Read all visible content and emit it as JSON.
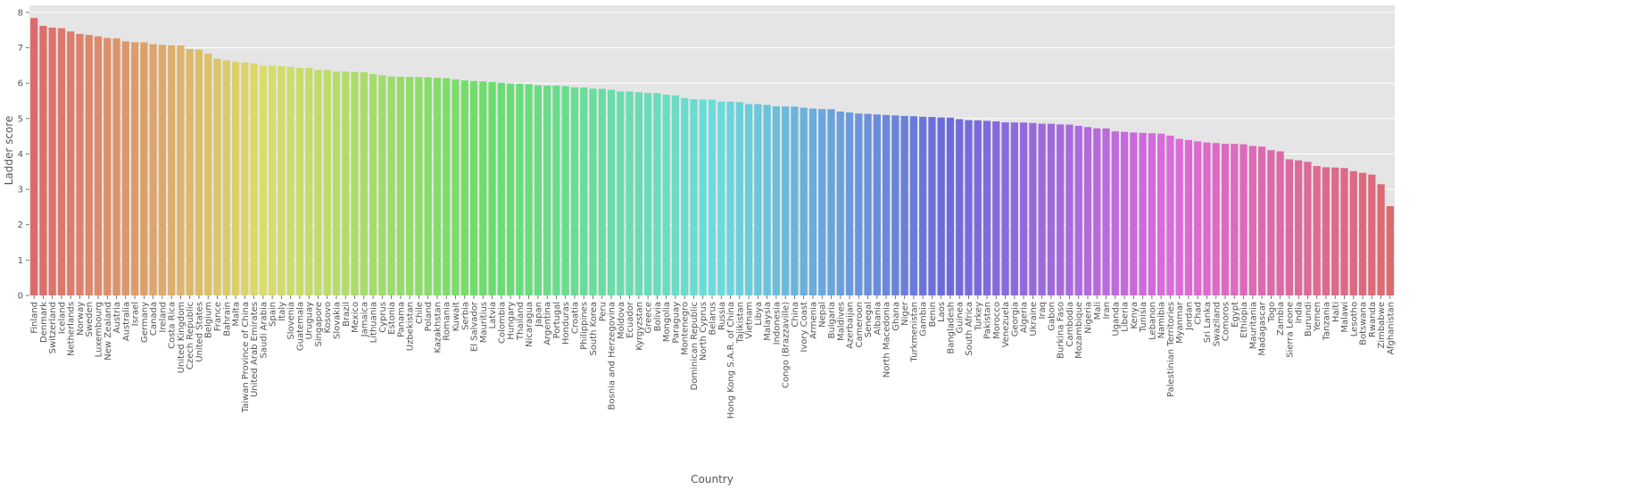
{
  "chart_data": {
    "type": "bar",
    "xlabel": "Country",
    "ylabel": "Ladder score",
    "ylim": [
      0,
      8.2
    ],
    "yticks": [
      0,
      1,
      2,
      3,
      4,
      5,
      6,
      7,
      8
    ],
    "grid": true,
    "background": "#e5e5e5",
    "categories": [
      "Finland",
      "Denmark",
      "Switzerland",
      "Iceland",
      "Netherlands",
      "Norway",
      "Sweden",
      "Luxembourg",
      "New Zealand",
      "Austria",
      "Australia",
      "Israel",
      "Germany",
      "Canada",
      "Ireland",
      "Costa Rica",
      "United Kingdom",
      "Czech Republic",
      "United States",
      "Belgium",
      "France",
      "Bahrain",
      "Malta",
      "Taiwan Province of China",
      "United Arab Emirates",
      "Saudi Arabia",
      "Spain",
      "Italy",
      "Slovenia",
      "Guatemala",
      "Uruguay",
      "Singapore",
      "Kosovo",
      "Slovakia",
      "Brazil",
      "Mexico",
      "Jamaica",
      "Lithuania",
      "Cyprus",
      "Estonia",
      "Panama",
      "Uzbekistan",
      "Chile",
      "Poland",
      "Kazakhstan",
      "Romania",
      "Kuwait",
      "Serbia",
      "El Salvador",
      "Mauritius",
      "Latvia",
      "Colombia",
      "Hungary",
      "Thailand",
      "Nicaragua",
      "Japan",
      "Argentina",
      "Portugal",
      "Honduras",
      "Croatia",
      "Philippines",
      "South Korea",
      "Peru",
      "Bosnia and Herzegovina",
      "Moldova",
      "Ecuador",
      "Kyrgyzstan",
      "Greece",
      "Bolivia",
      "Mongolia",
      "Paraguay",
      "Montenegro",
      "Dominican Republic",
      "North Cyprus",
      "Belarus",
      "Russia",
      "Hong Kong S.A.R. of China",
      "Tajikistan",
      "Vietnam",
      "Libya",
      "Malaysia",
      "Indonesia",
      "Congo (Brazzaville)",
      "China",
      "Ivory Coast",
      "Armenia",
      "Nepal",
      "Bulgaria",
      "Maldives",
      "Azerbaijan",
      "Cameroon",
      "Senegal",
      "Albania",
      "North Macedonia",
      "Ghana",
      "Niger",
      "Turkmenistan",
      "Gambia",
      "Benin",
      "Laos",
      "Bangladesh",
      "Guinea",
      "South Africa",
      "Turkey",
      "Pakistan",
      "Morocco",
      "Venezuela",
      "Georgia",
      "Algeria",
      "Ukraine",
      "Iraq",
      "Gabon",
      "Burkina Faso",
      "Cambodia",
      "Mozambique",
      "Nigeria",
      "Mali",
      "Iran",
      "Uganda",
      "Liberia",
      "Kenya",
      "Tunisia",
      "Lebanon",
      "Namibia",
      "Palestinian Territories",
      "Myanmar",
      "Jordan",
      "Chad",
      "Sri Lanka",
      "Swaziland",
      "Comoros",
      "Egypt",
      "Ethiopia",
      "Mauritania",
      "Madagascar",
      "Togo",
      "Zambia",
      "Sierra Leone",
      "India",
      "Burundi",
      "Yemen",
      "Tanzania",
      "Haiti",
      "Malawi",
      "Lesotho",
      "Botswana",
      "Rwanda",
      "Zimbabwe",
      "Afghanistan"
    ],
    "values": [
      7.842,
      7.62,
      7.571,
      7.554,
      7.464,
      7.392,
      7.363,
      7.324,
      7.277,
      7.268,
      7.183,
      7.157,
      7.155,
      7.103,
      7.085,
      7.069,
      7.064,
      6.965,
      6.951,
      6.834,
      6.69,
      6.647,
      6.602,
      6.584,
      6.561,
      6.494,
      6.491,
      6.483,
      6.461,
      6.435,
      6.431,
      6.377,
      6.372,
      6.331,
      6.33,
      6.317,
      6.309,
      6.255,
      6.223,
      6.189,
      6.18,
      6.179,
      6.172,
      6.166,
      6.152,
      6.14,
      6.106,
      6.078,
      6.061,
      6.049,
      6.032,
      6.012,
      5.992,
      5.985,
      5.972,
      5.94,
      5.929,
      5.929,
      5.919,
      5.882,
      5.88,
      5.845,
      5.84,
      5.813,
      5.766,
      5.764,
      5.744,
      5.723,
      5.716,
      5.677,
      5.653,
      5.581,
      5.545,
      5.536,
      5.534,
      5.477,
      5.477,
      5.466,
      5.411,
      5.41,
      5.384,
      5.345,
      5.342,
      5.339,
      5.306,
      5.283,
      5.269,
      5.266,
      5.198,
      5.171,
      5.142,
      5.132,
      5.117,
      5.101,
      5.088,
      5.074,
      5.066,
      5.051,
      5.045,
      5.03,
      5.025,
      4.984,
      4.956,
      4.948,
      4.934,
      4.918,
      4.892,
      4.891,
      4.887,
      4.875,
      4.854,
      4.852,
      4.834,
      4.83,
      4.794,
      4.759,
      4.723,
      4.721,
      4.636,
      4.625,
      4.607,
      4.596,
      4.584,
      4.574,
      4.517,
      4.426,
      4.395,
      4.355,
      4.325,
      4.308,
      4.289,
      4.283,
      4.275,
      4.227,
      4.208,
      4.107,
      4.073,
      3.849,
      3.819,
      3.775,
      3.658,
      3.623,
      3.615,
      3.6,
      3.512,
      3.467,
      3.415,
      3.145,
      2.523
    ]
  }
}
